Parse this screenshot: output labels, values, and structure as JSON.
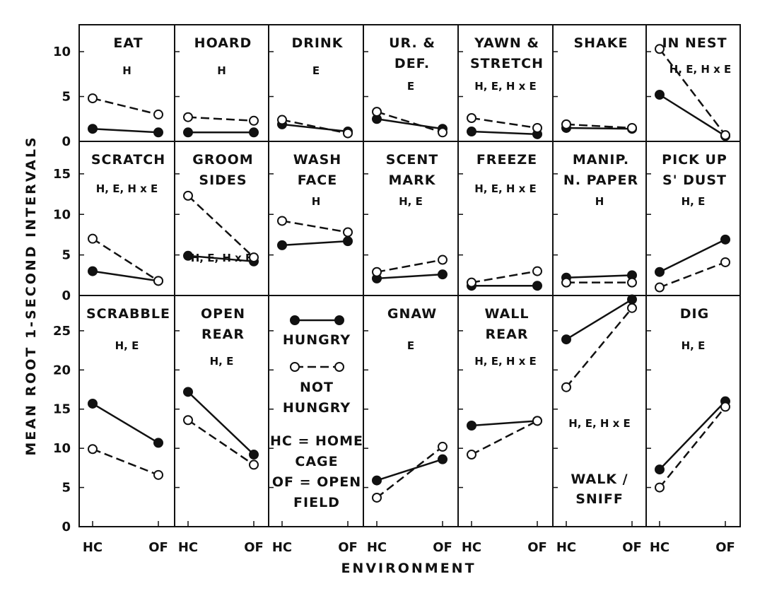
{
  "figure": {
    "ylabel": "MEAN ROOT 1-SECOND INTERVALS",
    "xlabel": "ENVIRONMENT",
    "legend": {
      "hungry": "HUNGRY",
      "not_hungry_1": "NOT",
      "not_hungry_2": "HUNGRY",
      "note_lines": [
        "HC = HOME",
        "CAGE",
        "OF = OPEN",
        "FIELD"
      ]
    },
    "row_ticks": [
      [
        0,
        5,
        10
      ],
      [
        0,
        5,
        10,
        15
      ],
      [
        0,
        5,
        10,
        15,
        20,
        25
      ]
    ]
  },
  "colors": {
    "ink": "#111111",
    "background": "#ffffff"
  },
  "chart_data": [
    {
      "type": "line",
      "title": [
        "EAT"
      ],
      "effects": [
        "H"
      ],
      "row": 0,
      "col": 0,
      "ylim": [
        0,
        13
      ],
      "categories": [
        "HC",
        "OF"
      ],
      "series": [
        {
          "name": "HUNGRY",
          "values": [
            1.4,
            1.0
          ]
        },
        {
          "name": "NOT HUNGRY",
          "values": [
            4.8,
            3.0
          ]
        }
      ]
    },
    {
      "type": "line",
      "title": [
        "HOARD"
      ],
      "effects": [
        "H"
      ],
      "row": 0,
      "col": 1,
      "ylim": [
        0,
        13
      ],
      "categories": [
        "HC",
        "OF"
      ],
      "series": [
        {
          "name": "HUNGRY",
          "values": [
            1.0,
            1.0
          ]
        },
        {
          "name": "NOT HUNGRY",
          "values": [
            2.7,
            2.3
          ]
        }
      ]
    },
    {
      "type": "line",
      "title": [
        "DRINK"
      ],
      "effects": [
        "E"
      ],
      "row": 0,
      "col": 2,
      "ylim": [
        0,
        13
      ],
      "categories": [
        "HC",
        "OF"
      ],
      "series": [
        {
          "name": "HUNGRY",
          "values": [
            1.9,
            1.1
          ]
        },
        {
          "name": "NOT HUNGRY",
          "values": [
            2.4,
            0.9
          ]
        }
      ]
    },
    {
      "type": "line",
      "title": [
        "UR. &",
        "DEF."
      ],
      "effects": [
        "E"
      ],
      "row": 0,
      "col": 3,
      "ylim": [
        0,
        13
      ],
      "categories": [
        "HC",
        "OF"
      ],
      "series": [
        {
          "name": "HUNGRY",
          "values": [
            2.5,
            1.4
          ]
        },
        {
          "name": "NOT HUNGRY",
          "values": [
            3.3,
            1.0
          ]
        }
      ]
    },
    {
      "type": "line",
      "title": [
        "YAWN &",
        "STRETCH"
      ],
      "effects": [
        "H, E, H x E"
      ],
      "row": 0,
      "col": 4,
      "ylim": [
        0,
        13
      ],
      "categories": [
        "HC",
        "OF"
      ],
      "series": [
        {
          "name": "HUNGRY",
          "values": [
            1.1,
            0.8
          ]
        },
        {
          "name": "NOT HUNGRY",
          "values": [
            2.6,
            1.5
          ]
        }
      ]
    },
    {
      "type": "line",
      "title": [
        "SHAKE"
      ],
      "effects": [],
      "row": 0,
      "col": 5,
      "ylim": [
        0,
        13
      ],
      "categories": [
        "HC",
        "OF"
      ],
      "series": [
        {
          "name": "HUNGRY",
          "values": [
            1.5,
            1.4
          ]
        },
        {
          "name": "NOT HUNGRY",
          "values": [
            1.9,
            1.5
          ]
        }
      ]
    },
    {
      "type": "line",
      "title": [
        "IN  NEST"
      ],
      "effects": [
        "H, E, H x E"
      ],
      "row": 0,
      "col": 6,
      "ylim": [
        0,
        13
      ],
      "categories": [
        "HC",
        "OF"
      ],
      "series": [
        {
          "name": "HUNGRY",
          "values": [
            5.2,
            0.6
          ]
        },
        {
          "name": "NOT HUNGRY",
          "values": [
            10.3,
            0.7
          ]
        }
      ]
    },
    {
      "type": "line",
      "title": [
        "SCRATCH"
      ],
      "effects": [
        "H, E, H x E"
      ],
      "row": 1,
      "col": 0,
      "ylim": [
        0,
        19
      ],
      "categories": [
        "HC",
        "OF"
      ],
      "series": [
        {
          "name": "HUNGRY",
          "values": [
            3.0,
            1.8
          ]
        },
        {
          "name": "NOT HUNGRY",
          "values": [
            7.0,
            1.8
          ]
        }
      ]
    },
    {
      "type": "line",
      "title": [
        "GROOM",
        "SIDES"
      ],
      "effects": [
        "H, E, H x E"
      ],
      "row": 1,
      "col": 1,
      "ylim": [
        0,
        19
      ],
      "categories": [
        "HC",
        "OF"
      ],
      "series": [
        {
          "name": "HUNGRY",
          "values": [
            4.9,
            4.2
          ]
        },
        {
          "name": "NOT HUNGRY",
          "values": [
            12.3,
            4.7
          ]
        }
      ]
    },
    {
      "type": "line",
      "title": [
        "WASH",
        "FACE"
      ],
      "effects": [
        "H"
      ],
      "row": 1,
      "col": 2,
      "ylim": [
        0,
        19
      ],
      "categories": [
        "HC",
        "OF"
      ],
      "series": [
        {
          "name": "HUNGRY",
          "values": [
            6.2,
            6.7
          ]
        },
        {
          "name": "NOT HUNGRY",
          "values": [
            9.2,
            7.8
          ]
        }
      ]
    },
    {
      "type": "line",
      "title": [
        "SCENT",
        "MARK"
      ],
      "effects": [
        "H, E"
      ],
      "row": 1,
      "col": 3,
      "ylim": [
        0,
        19
      ],
      "categories": [
        "HC",
        "OF"
      ],
      "series": [
        {
          "name": "HUNGRY",
          "values": [
            2.1,
            2.6
          ]
        },
        {
          "name": "NOT HUNGRY",
          "values": [
            2.9,
            4.4
          ]
        }
      ]
    },
    {
      "type": "line",
      "title": [
        "FREEZE"
      ],
      "effects": [
        "H, E, H x E"
      ],
      "row": 1,
      "col": 4,
      "ylim": [
        0,
        19
      ],
      "categories": [
        "HC",
        "OF"
      ],
      "series": [
        {
          "name": "HUNGRY",
          "values": [
            1.2,
            1.2
          ]
        },
        {
          "name": "NOT HUNGRY",
          "values": [
            1.6,
            3.0
          ]
        }
      ]
    },
    {
      "type": "line",
      "title": [
        "MANIP.",
        "N. PAPER"
      ],
      "effects": [
        "H"
      ],
      "row": 1,
      "col": 5,
      "ylim": [
        0,
        19
      ],
      "categories": [
        "HC",
        "OF"
      ],
      "series": [
        {
          "name": "HUNGRY",
          "values": [
            2.2,
            2.5
          ]
        },
        {
          "name": "NOT HUNGRY",
          "values": [
            1.6,
            1.6
          ]
        }
      ]
    },
    {
      "type": "line",
      "title": [
        "PICK UP",
        "S' DUST"
      ],
      "effects": [
        "H, E"
      ],
      "row": 1,
      "col": 6,
      "ylim": [
        0,
        19
      ],
      "categories": [
        "HC",
        "OF"
      ],
      "series": [
        {
          "name": "HUNGRY",
          "values": [
            2.9,
            6.9
          ]
        },
        {
          "name": "NOT HUNGRY",
          "values": [
            1.0,
            4.1
          ]
        }
      ]
    },
    {
      "type": "line",
      "title": [
        "SCRABBLE"
      ],
      "effects": [
        "H, E"
      ],
      "row": 2,
      "col": 0,
      "ylim": [
        0,
        29.5
      ],
      "categories": [
        "HC",
        "OF"
      ],
      "series": [
        {
          "name": "HUNGRY",
          "values": [
            15.7,
            10.7
          ]
        },
        {
          "name": "NOT HUNGRY",
          "values": [
            9.9,
            6.6
          ]
        }
      ]
    },
    {
      "type": "line",
      "title": [
        "OPEN",
        "REAR"
      ],
      "effects": [
        "H, E"
      ],
      "row": 2,
      "col": 1,
      "ylim": [
        0,
        29.5
      ],
      "categories": [
        "HC",
        "OF"
      ],
      "series": [
        {
          "name": "HUNGRY",
          "values": [
            17.2,
            9.2
          ]
        },
        {
          "name": "NOT HUNGRY",
          "values": [
            13.6,
            7.9
          ]
        }
      ]
    },
    {
      "type": "line",
      "title": [
        "GNAW"
      ],
      "effects": [
        "E"
      ],
      "row": 2,
      "col": 3,
      "ylim": [
        0,
        29.5
      ],
      "categories": [
        "HC",
        "OF"
      ],
      "series": [
        {
          "name": "HUNGRY",
          "values": [
            5.9,
            8.6
          ]
        },
        {
          "name": "NOT HUNGRY",
          "values": [
            3.7,
            10.2
          ]
        }
      ]
    },
    {
      "type": "line",
      "title": [
        "WALL",
        "REAR"
      ],
      "effects": [
        "H, E, H x E"
      ],
      "row": 2,
      "col": 4,
      "ylim": [
        0,
        29.5
      ],
      "categories": [
        "HC",
        "OF"
      ],
      "series": [
        {
          "name": "HUNGRY",
          "values": [
            12.9,
            13.5
          ]
        },
        {
          "name": "NOT HUNGRY",
          "values": [
            9.2,
            13.5
          ]
        }
      ]
    },
    {
      "type": "line",
      "title": [],
      "bottom_title": [
        "WALK /",
        "SNIFF"
      ],
      "effects": [
        "H, E, H x E"
      ],
      "row": 2,
      "col": 5,
      "ylim": [
        0,
        29.5
      ],
      "categories": [
        "HC",
        "OF"
      ],
      "series": [
        {
          "name": "HUNGRY",
          "values": [
            23.9,
            29.0
          ]
        },
        {
          "name": "NOT HUNGRY",
          "values": [
            17.8,
            27.9
          ]
        }
      ]
    },
    {
      "type": "line",
      "title": [
        "DIG"
      ],
      "effects": [
        "H, E"
      ],
      "row": 2,
      "col": 6,
      "ylim": [
        0,
        29.5
      ],
      "categories": [
        "HC",
        "OF"
      ],
      "series": [
        {
          "name": "HUNGRY",
          "values": [
            7.3,
            16.0
          ]
        },
        {
          "name": "NOT HUNGRY",
          "values": [
            5.0,
            15.3
          ]
        }
      ]
    }
  ]
}
